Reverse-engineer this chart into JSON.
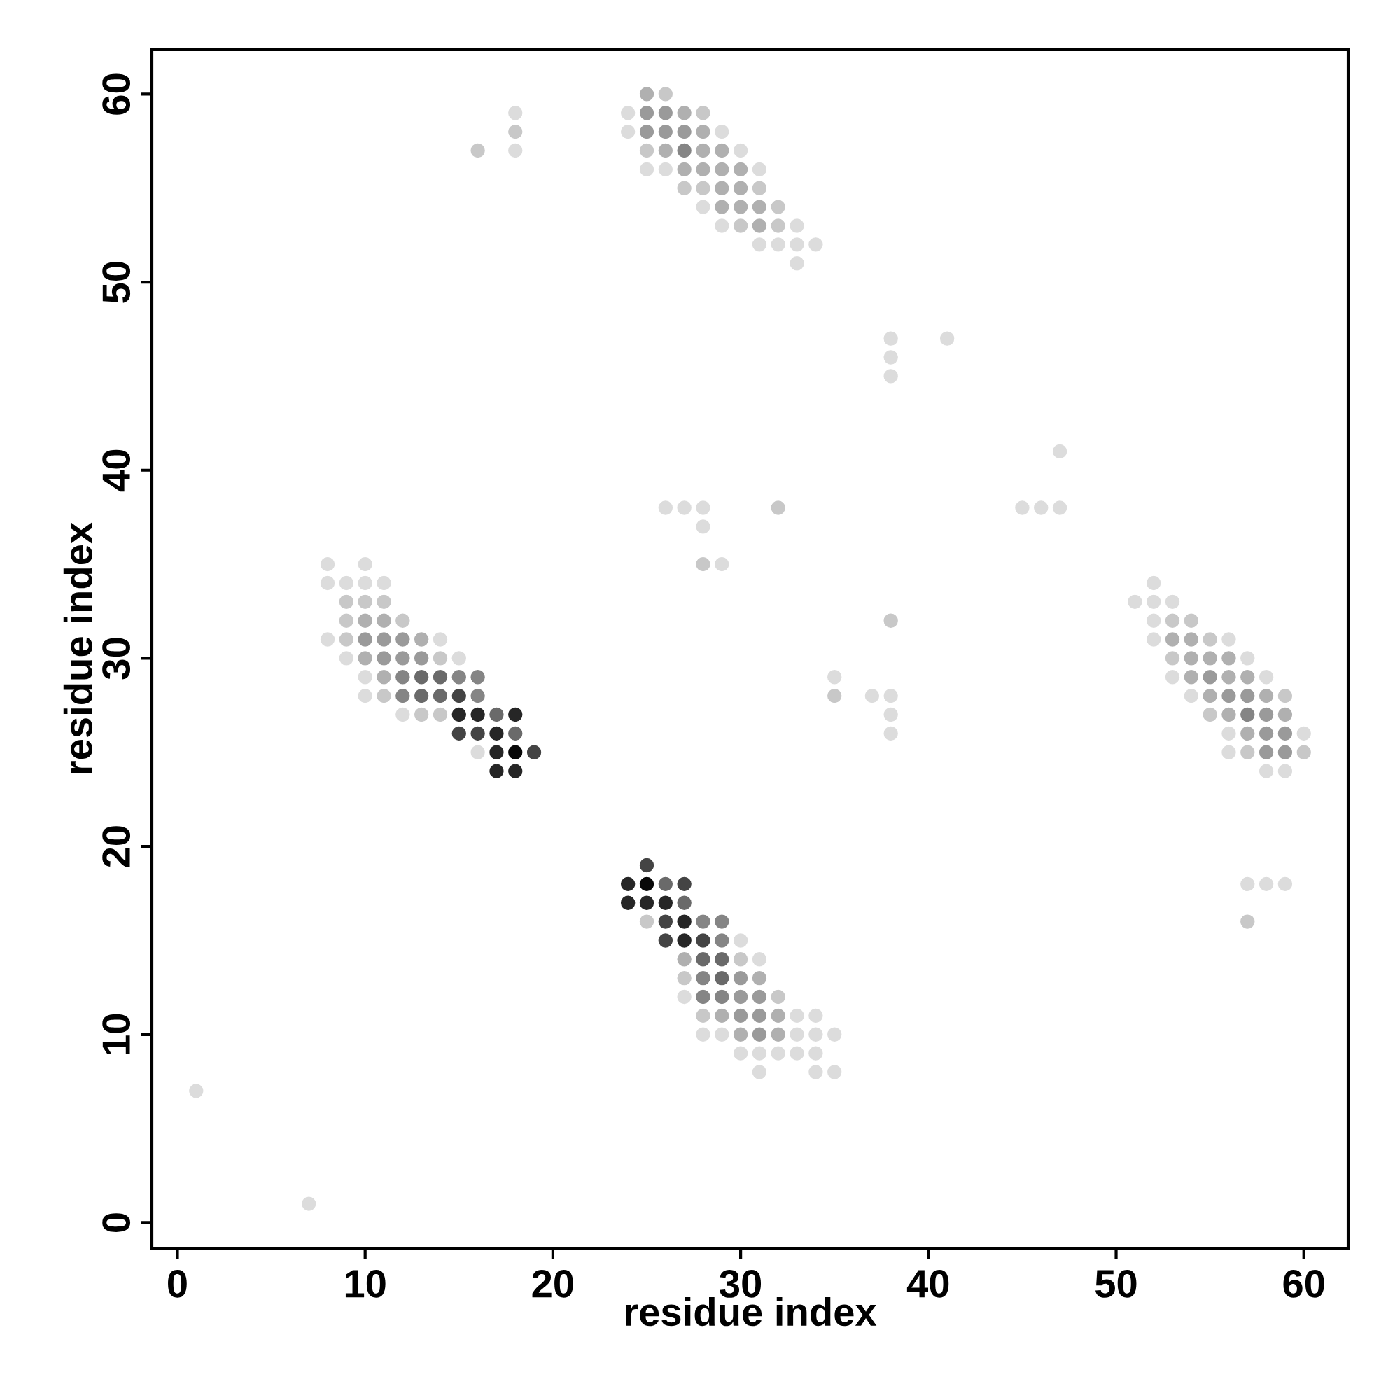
{
  "chart_data": {
    "type": "scatter",
    "xlabel": "residue index",
    "ylabel": "residue index",
    "xlim": [
      -1.36,
      62.36
    ],
    "ylim": [
      -1.36,
      62.36
    ],
    "xticks": [
      0,
      10,
      20,
      30,
      40,
      50,
      60
    ],
    "yticks": [
      0,
      10,
      20,
      30,
      40,
      50,
      60
    ],
    "marker": "circle",
    "series": [
      {
        "color": "#dcdcdc",
        "x": [
          24,
          24,
          30,
          29,
          25,
          26,
          31,
          28,
          29,
          33,
          31,
          32,
          33,
          34,
          33,
          8,
          10,
          8,
          9,
          10,
          11,
          8,
          14,
          9,
          15,
          10,
          10,
          12,
          16,
          30,
          31,
          27,
          33,
          34,
          28,
          29,
          33,
          34,
          35,
          30,
          31,
          32,
          33,
          34,
          31,
          34,
          35,
          52,
          51,
          52,
          53,
          52,
          52,
          56,
          57,
          53,
          58,
          54,
          56,
          60,
          56,
          58,
          59,
          38,
          38,
          38,
          41,
          47,
          26,
          27,
          28,
          28,
          29,
          45,
          46,
          47,
          35,
          37,
          38,
          38,
          38,
          18,
          18,
          1,
          7,
          57,
          58,
          59
        ],
        "values": [
          59,
          58,
          57,
          58,
          56,
          56,
          56,
          54,
          53,
          53,
          52,
          52,
          52,
          52,
          51,
          35,
          35,
          34,
          34,
          34,
          34,
          31,
          31,
          30,
          30,
          29,
          28,
          27,
          25,
          15,
          14,
          12,
          11,
          11,
          10,
          10,
          10,
          10,
          10,
          9,
          9,
          9,
          9,
          9,
          8,
          8,
          8,
          34,
          33,
          33,
          33,
          32,
          31,
          31,
          30,
          29,
          29,
          28,
          26,
          26,
          25,
          24,
          24,
          47,
          46,
          45,
          47,
          41,
          38,
          38,
          38,
          37,
          35,
          38,
          38,
          38,
          29,
          28,
          28,
          27,
          26,
          59,
          57,
          7,
          1,
          18,
          18,
          18
        ]
      },
      {
        "color": "#c8c8c8",
        "x": [
          26,
          28,
          25,
          27,
          28,
          31,
          32,
          30,
          32,
          9,
          10,
          11,
          9,
          12,
          9,
          14,
          11,
          13,
          14,
          25,
          30,
          27,
          32,
          28,
          53,
          54,
          55,
          53,
          59,
          55,
          57,
          60,
          32,
          38,
          35,
          28,
          16,
          18,
          57
        ],
        "values": [
          60,
          59,
          57,
          55,
          55,
          55,
          54,
          53,
          53,
          33,
          33,
          33,
          32,
          32,
          31,
          30,
          28,
          27,
          27,
          16,
          14,
          13,
          12,
          11,
          32,
          32,
          31,
          30,
          28,
          27,
          25,
          25,
          38,
          32,
          28,
          35,
          57,
          58,
          16
        ]
      },
      {
        "color": "#b0b0b0",
        "x": [
          25,
          27,
          28,
          26,
          28,
          29,
          27,
          28,
          29,
          30,
          29,
          30,
          29,
          30,
          31,
          31,
          10,
          11,
          13,
          10,
          11,
          27,
          31,
          29,
          32,
          30,
          32,
          53,
          54,
          54,
          55,
          56,
          54,
          56,
          57,
          55,
          58,
          56,
          59,
          57
        ],
        "values": [
          60,
          59,
          58,
          57,
          57,
          57,
          56,
          56,
          56,
          56,
          55,
          55,
          54,
          54,
          54,
          53,
          32,
          32,
          31,
          30,
          29,
          14,
          13,
          11,
          11,
          10,
          10,
          31,
          31,
          30,
          30,
          30,
          29,
          29,
          29,
          28,
          28,
          27,
          27,
          26
        ]
      },
      {
        "color": "#9a9a9a",
        "x": [
          25,
          26,
          25,
          26,
          27,
          10,
          11,
          12,
          11,
          12,
          13,
          30,
          30,
          31,
          30,
          31,
          31,
          55,
          56,
          57,
          58,
          58,
          59,
          58,
          59
        ],
        "values": [
          59,
          59,
          58,
          58,
          58,
          31,
          31,
          31,
          30,
          30,
          30,
          13,
          12,
          12,
          11,
          11,
          10,
          29,
          28,
          28,
          27,
          26,
          26,
          25,
          25
        ]
      },
      {
        "color": "#858585",
        "x": [
          27,
          12,
          15,
          16,
          12,
          16,
          28,
          29,
          29,
          28,
          28,
          29,
          57
        ],
        "values": [
          57,
          29,
          29,
          29,
          28,
          28,
          16,
          16,
          15,
          13,
          12,
          12,
          27
        ]
      },
      {
        "color": "#6a6a6a",
        "x": [
          13,
          14,
          13,
          14,
          17,
          18,
          26,
          27,
          28,
          29,
          29
        ],
        "values": [
          29,
          29,
          28,
          28,
          27,
          26,
          18,
          17,
          14,
          14,
          13
        ]
      },
      {
        "color": "#444444",
        "x": [
          15,
          15,
          16,
          19,
          25,
          27,
          26,
          26,
          28
        ],
        "values": [
          28,
          26,
          26,
          25,
          19,
          18,
          16,
          15,
          15
        ]
      },
      {
        "color": "#262626",
        "x": [
          15,
          16,
          18,
          17,
          17,
          17,
          18,
          24,
          24,
          25,
          26,
          27,
          27
        ],
        "values": [
          27,
          27,
          27,
          26,
          25,
          24,
          24,
          18,
          17,
          17,
          17,
          16,
          15
        ]
      },
      {
        "color": "#080808",
        "x": [
          18,
          25
        ],
        "values": [
          25,
          18
        ]
      }
    ]
  }
}
